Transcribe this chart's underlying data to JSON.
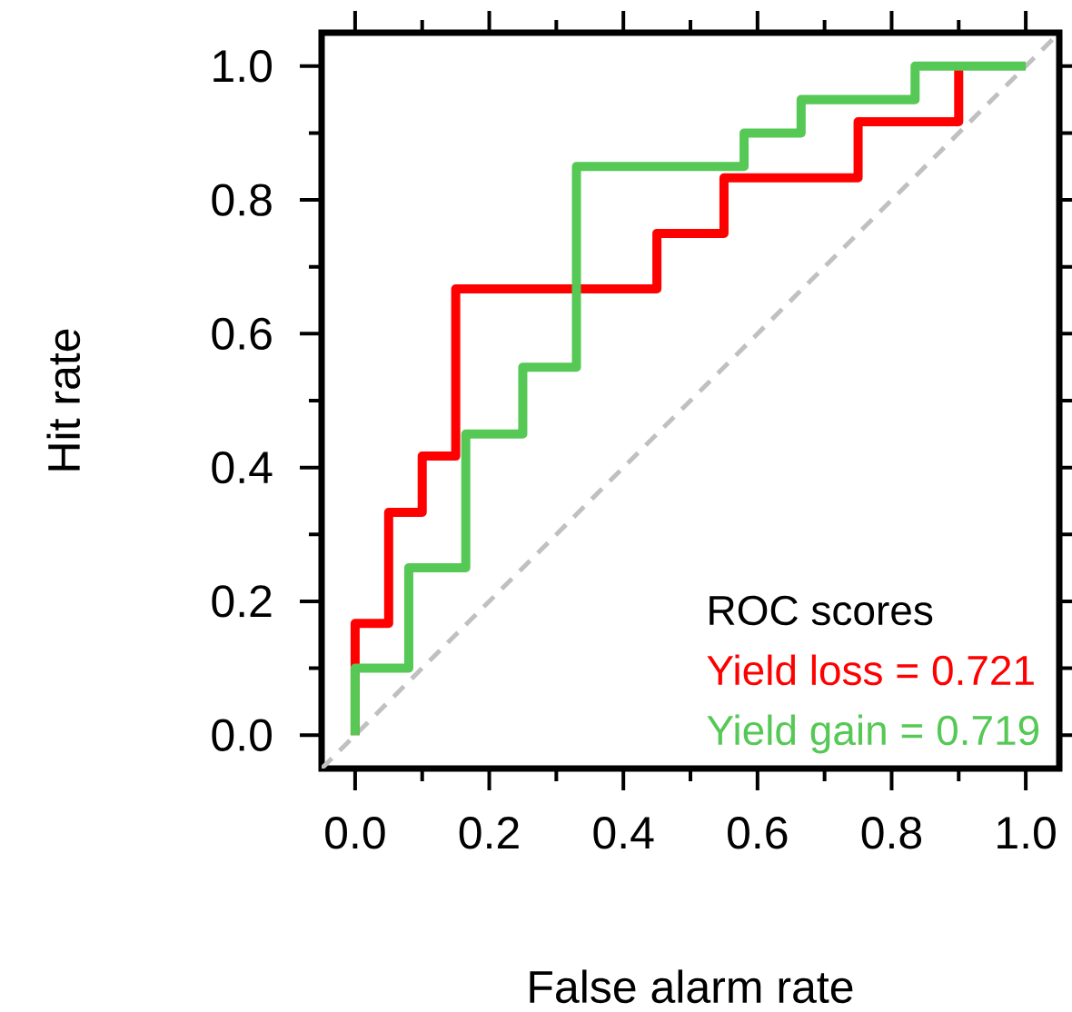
{
  "chart_data": {
    "type": "step",
    "xlabel": "False alarm rate",
    "ylabel": "Hit rate",
    "legend_title": "ROC scores",
    "legend": "bottom right",
    "xlim": [
      -0.05,
      1.05
    ],
    "ylim": [
      -0.05,
      1.05
    ],
    "xticks": [
      {
        "value": 0,
        "label": "0.0"
      },
      {
        "value": 0.2,
        "label": "0.2"
      },
      {
        "value": 0.4,
        "label": "0.4"
      },
      {
        "value": 0.6,
        "label": "0.6"
      },
      {
        "value": 0.8,
        "label": "0.8"
      },
      {
        "value": 1,
        "label": "1.0"
      }
    ],
    "yticks": [
      {
        "value": 0,
        "label": "0.0"
      },
      {
        "value": 0.2,
        "label": "0.2"
      },
      {
        "value": 0.4,
        "label": "0.4"
      },
      {
        "value": 0.6,
        "label": "0.6"
      },
      {
        "value": 0.8,
        "label": "0.8"
      },
      {
        "value": 1,
        "label": "1.0"
      }
    ],
    "grid": false,
    "marker": "none",
    "series": [
      {
        "type": "line",
        "line_style": "dashed",
        "color": "#c0c0c0",
        "x": [
          -0.05,
          1.05
        ],
        "values": [
          -0.05,
          1.05
        ]
      },
      {
        "name": "Yield loss = 0.721",
        "color": "#ff0000",
        "x": [
          0,
          0,
          0.05,
          0.1,
          0.15,
          0.45,
          0.55,
          0.75,
          0.9
        ],
        "values": [
          0,
          0.167,
          0.333,
          0.417,
          0.667,
          0.75,
          0.833,
          0.917,
          1.0
        ]
      },
      {
        "name": "Yield gain = 0.719",
        "color": "#55c855",
        "x": [
          0,
          0,
          0.08,
          0.165,
          0.25,
          0.33,
          0.58,
          0.665,
          0.835,
          1.0
        ],
        "values": [
          0,
          0.1,
          0.25,
          0.45,
          0.55,
          0.85,
          0.9,
          0.95,
          1.0,
          1.0
        ]
      }
    ]
  }
}
